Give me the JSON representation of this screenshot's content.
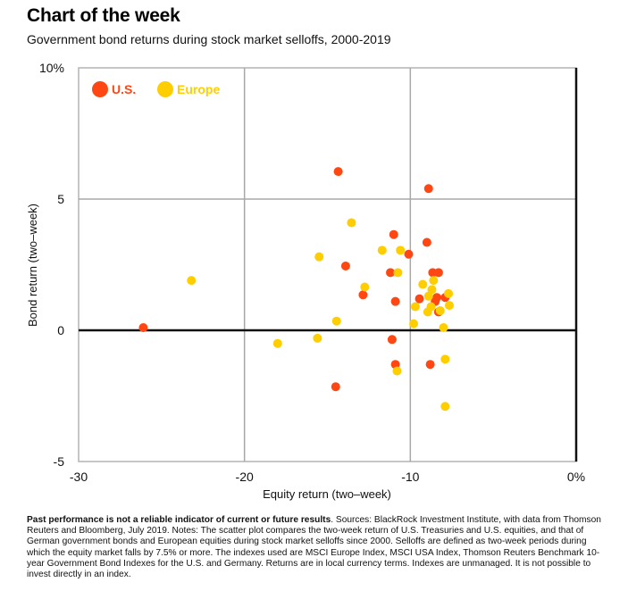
{
  "header": {
    "title": "Chart of the week",
    "subtitle": "Government bond returns during stock market selloffs, 2000-2019"
  },
  "footnote": {
    "bold": "Past performance is not a reliable indicator of current or future results",
    "text": ". Sources: BlackRock Investment Institute, with data from Thomson Reuters and Bloomberg, July 2019. Notes: The scatter plot compares the two-week return of U.S. Treasuries and U.S. equities, and that of German government bonds and European equities during stock market selloffs since 2000. Selloffs are defined as two-week periods during which the equity market falls by 7.5% or more. The indexes used are MSCI Europe Index, MSCI USA Index, Thomson Reuters Benchmark 10-year Government Bond Indexes for the U.S. and Germany. Returns are in local currency terms. Indexes are unmanaged. It is not possible to invest directly in an index."
  },
  "chart_data": {
    "type": "scatter",
    "title": "Government bond returns during stock market selloffs, 2000-2019",
    "xlabel": "Equity return (two–week)",
    "ylabel": "Bond return (two–week)",
    "xlim": [
      -30,
      0
    ],
    "ylim": [
      -5,
      10
    ],
    "xticks": [
      -30,
      -20,
      -10,
      0
    ],
    "xtick_labels": [
      "-30",
      "-20",
      "-10",
      "0%"
    ],
    "yticks": [
      -5,
      0,
      5,
      10
    ],
    "ytick_labels": [
      "-5",
      "0",
      "5",
      "10%"
    ],
    "grid": true,
    "legend": "top-left",
    "series": [
      {
        "name": "U.S.",
        "color": "#FF4713",
        "points": [
          [
            -26.1,
            0.1
          ],
          [
            -14.35,
            6.05
          ],
          [
            -8.9,
            5.4
          ],
          [
            -11.0,
            3.65
          ],
          [
            -10.1,
            2.9
          ],
          [
            -9.0,
            3.35
          ],
          [
            -13.9,
            2.45
          ],
          [
            -11.2,
            2.2
          ],
          [
            -12.85,
            1.35
          ],
          [
            -10.9,
            1.1
          ],
          [
            -8.65,
            2.2
          ],
          [
            -8.3,
            2.2
          ],
          [
            -9.45,
            1.2
          ],
          [
            -8.4,
            1.25
          ],
          [
            -7.9,
            1.25
          ],
          [
            -8.5,
            1.1
          ],
          [
            -8.3,
            0.7
          ],
          [
            -11.1,
            -0.35
          ],
          [
            -10.9,
            -1.3
          ],
          [
            -8.8,
            -1.3
          ],
          [
            -14.5,
            -2.15
          ]
        ]
      },
      {
        "name": "Europe",
        "color": "#FFCE00",
        "points": [
          [
            -23.2,
            1.9
          ],
          [
            -18.0,
            -0.5
          ],
          [
            -15.6,
            -0.3
          ],
          [
            -15.5,
            2.8
          ],
          [
            -14.45,
            0.35
          ],
          [
            -13.55,
            4.1
          ],
          [
            -11.7,
            3.05
          ],
          [
            -10.6,
            3.05
          ],
          [
            -10.75,
            2.2
          ],
          [
            -12.75,
            1.65
          ],
          [
            -8.6,
            1.9
          ],
          [
            -9.25,
            1.75
          ],
          [
            -8.7,
            1.55
          ],
          [
            -8.9,
            1.3
          ],
          [
            -7.7,
            1.4
          ],
          [
            -7.65,
            0.95
          ],
          [
            -9.7,
            0.9
          ],
          [
            -8.75,
            0.9
          ],
          [
            -8.95,
            0.7
          ],
          [
            -8.2,
            0.75
          ],
          [
            -9.8,
            0.25
          ],
          [
            -8.0,
            0.1
          ],
          [
            -10.8,
            -1.55
          ],
          [
            -7.9,
            -1.1
          ],
          [
            -7.9,
            -2.9
          ]
        ]
      }
    ]
  }
}
